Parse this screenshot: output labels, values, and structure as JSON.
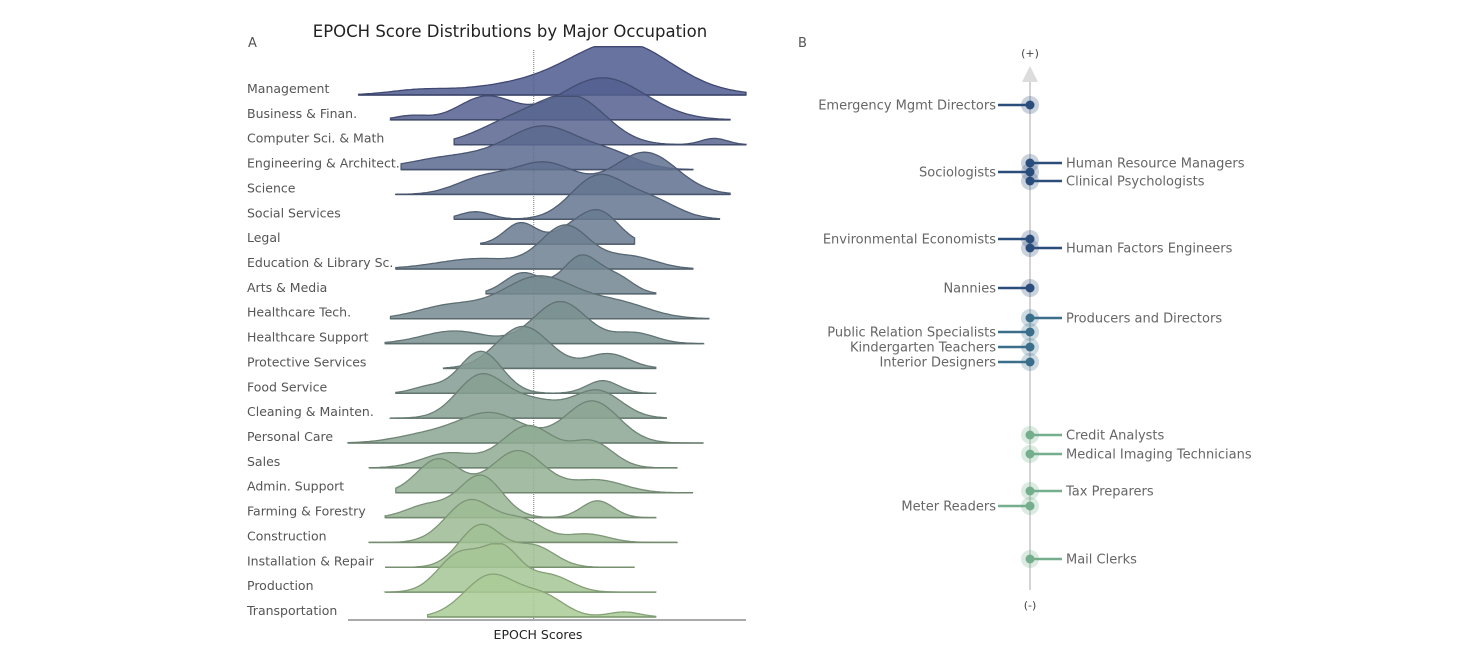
{
  "chart_data": [
    {
      "panel": "A",
      "type": "area",
      "subtype": "ridgeline",
      "title": "EPOCH Score Distributions by Major Occupation",
      "xlabel": "EPOCH Scores",
      "ylabel": "",
      "xlim": [
        -3.5,
        4.0
      ],
      "reference_line_x": 0,
      "grid": false,
      "color_range": [
        "#4f5a8e",
        "#a9cb95"
      ],
      "series": [
        {
          "name": "Management",
          "range": [
            -3.3,
            4.0
          ],
          "peaks": [
            [
              -2.2,
              0.5,
              0.08
            ],
            [
              1.7,
              0.9,
              1.0
            ],
            [
              0.6,
              1.5,
              0.35
            ]
          ]
        },
        {
          "name": "Business & Finan.",
          "range": [
            -2.7,
            3.7
          ],
          "peaks": [
            [
              -2.3,
              0.3,
              0.1
            ],
            [
              -0.9,
              0.5,
              0.55
            ],
            [
              1.3,
              0.8,
              1.0
            ]
          ]
        },
        {
          "name": "Computer Sci. & Math",
          "range": [
            -1.5,
            4.0
          ],
          "peaks": [
            [
              0.8,
              0.6,
              1.0
            ],
            [
              -0.3,
              0.7,
              0.6
            ],
            [
              3.4,
              0.25,
              0.15
            ]
          ]
        },
        {
          "name": "Engineering & Architect.",
          "range": [
            -2.5,
            3.0
          ],
          "peaks": [
            [
              0.2,
              0.7,
              1.0
            ],
            [
              -1.5,
              0.8,
              0.3
            ],
            [
              1.5,
              0.5,
              0.3
            ]
          ]
        },
        {
          "name": "Science",
          "range": [
            -2.6,
            3.7
          ],
          "peaks": [
            [
              0.2,
              0.6,
              0.75
            ],
            [
              2.1,
              0.6,
              1.0
            ],
            [
              -1.0,
              0.5,
              0.35
            ]
          ]
        },
        {
          "name": "Social Services",
          "range": [
            -1.5,
            3.5
          ],
          "peaks": [
            [
              -1.1,
              0.3,
              0.18
            ],
            [
              1.2,
              0.5,
              1.0
            ],
            [
              2.2,
              0.5,
              0.45
            ]
          ]
        },
        {
          "name": "Legal",
          "range": [
            -1.0,
            1.9
          ],
          "peaks": [
            [
              -0.25,
              0.3,
              0.5
            ],
            [
              1.3,
              0.35,
              0.6
            ],
            [
              0.8,
              0.4,
              0.4
            ]
          ]
        },
        {
          "name": "Education & Library Sc.",
          "range": [
            -2.6,
            3.0
          ],
          "peaks": [
            [
              0.6,
              0.45,
              1.0
            ],
            [
              -1.0,
              0.8,
              0.25
            ],
            [
              1.8,
              0.5,
              0.3
            ]
          ]
        },
        {
          "name": "Arts & Media",
          "range": [
            -0.9,
            2.3
          ],
          "peaks": [
            [
              -0.2,
              0.35,
              0.5
            ],
            [
              0.9,
              0.35,
              0.9
            ],
            [
              1.6,
              0.3,
              0.35
            ]
          ]
        },
        {
          "name": "Healthcare Tech.",
          "range": [
            -2.7,
            3.3
          ],
          "peaks": [
            [
              0.1,
              0.7,
              1.0
            ],
            [
              -1.6,
              0.6,
              0.3
            ],
            [
              1.6,
              0.6,
              0.35
            ]
          ]
        },
        {
          "name": "Healthcare Support",
          "range": [
            -2.8,
            3.2
          ],
          "peaks": [
            [
              0.5,
              0.5,
              1.0
            ],
            [
              -1.5,
              0.6,
              0.3
            ],
            [
              1.9,
              0.4,
              0.25
            ]
          ]
        },
        {
          "name": "Protective Services",
          "range": [
            -1.7,
            2.3
          ],
          "peaks": [
            [
              -0.2,
              0.5,
              1.0
            ],
            [
              1.4,
              0.4,
              0.35
            ]
          ]
        },
        {
          "name": "Food Service",
          "range": [
            -2.6,
            2.3
          ],
          "peaks": [
            [
              -1.0,
              0.4,
              1.0
            ],
            [
              1.3,
              0.3,
              0.3
            ],
            [
              -2.0,
              0.3,
              0.15
            ]
          ]
        },
        {
          "name": "Cleaning &  Mainten.",
          "range": [
            -2.7,
            2.5
          ],
          "peaks": [
            [
              -1.0,
              0.45,
              1.0
            ],
            [
              1.2,
              0.45,
              0.65
            ],
            [
              0.0,
              0.5,
              0.4
            ]
          ]
        },
        {
          "name": "Personal Care",
          "range": [
            -3.5,
            3.2
          ],
          "peaks": [
            [
              -0.8,
              0.6,
              0.7
            ],
            [
              1.1,
              0.5,
              1.0
            ],
            [
              -2.0,
              0.6,
              0.2
            ]
          ]
        },
        {
          "name": "Sales",
          "range": [
            -3.1,
            2.7
          ],
          "peaks": [
            [
              -0.1,
              0.5,
              1.0
            ],
            [
              1.1,
              0.4,
              0.6
            ],
            [
              -1.6,
              0.5,
              0.35
            ]
          ]
        },
        {
          "name": "Admin. Support",
          "range": [
            -2.6,
            3.0
          ],
          "peaks": [
            [
              -1.8,
              0.4,
              0.8
            ],
            [
              -0.3,
              0.5,
              1.0
            ],
            [
              1.2,
              0.5,
              0.3
            ]
          ]
        },
        {
          "name": "Farming & Forestry",
          "range": [
            -2.8,
            2.3
          ],
          "peaks": [
            [
              -1.0,
              0.4,
              1.0
            ],
            [
              1.2,
              0.3,
              0.4
            ],
            [
              -2.0,
              0.4,
              0.3
            ]
          ]
        },
        {
          "name": "Construction",
          "range": [
            -3.1,
            2.7
          ],
          "peaks": [
            [
              -1.2,
              0.45,
              1.0
            ],
            [
              -0.2,
              0.4,
              0.5
            ],
            [
              1.0,
              0.4,
              0.2
            ]
          ]
        },
        {
          "name": "Installation & Repair",
          "range": [
            -2.8,
            1.9
          ],
          "peaks": [
            [
              -1.0,
              0.4,
              1.0
            ],
            [
              0.0,
              0.4,
              0.5
            ]
          ]
        },
        {
          "name": "Production",
          "range": [
            -2.8,
            2.3
          ],
          "peaks": [
            [
              -1.4,
              0.4,
              0.9
            ],
            [
              -0.6,
              0.35,
              1.0
            ],
            [
              0.3,
              0.4,
              0.4
            ]
          ]
        },
        {
          "name": "Transportation",
          "range": [
            -2.0,
            2.3
          ],
          "peaks": [
            [
              -0.8,
              0.5,
              1.0
            ],
            [
              0.2,
              0.4,
              0.45
            ],
            [
              1.7,
              0.3,
              0.12
            ]
          ]
        }
      ]
    },
    {
      "panel": "B",
      "type": "scatter",
      "subtype": "ranked-axis",
      "axis_top_label": "(+)",
      "axis_bottom_label": "(-)",
      "ylim": [
        0,
        100
      ],
      "colors": {
        "high": "#2b4d7b",
        "mid": "#3b6e8a",
        "low": "#74ae8c"
      },
      "points": [
        {
          "name": "Emergency Mgmt Directors",
          "score": 99,
          "side": "left"
        },
        {
          "name": "Human Resource Managers",
          "score": 87.4,
          "side": "right"
        },
        {
          "name": "Sociologists",
          "score": 85.6,
          "side": "left"
        },
        {
          "name": "Clinical Psychologists",
          "score": 83.8,
          "side": "right"
        },
        {
          "name": "Environmental Economists",
          "score": 72.2,
          "side": "left"
        },
        {
          "name": "Human Factors Engineers",
          "score": 70.4,
          "side": "right"
        },
        {
          "name": "Nannies",
          "score": 62.4,
          "side": "left"
        },
        {
          "name": "Producers and Directors",
          "score": 56.4,
          "side": "right"
        },
        {
          "name": "Public Relation Specialists",
          "score": 53.6,
          "side": "left"
        },
        {
          "name": "Kindergarten Teachers",
          "score": 50.6,
          "side": "left"
        },
        {
          "name": "Interior Designers",
          "score": 47.6,
          "side": "left"
        },
        {
          "name": "Credit Analysts",
          "score": 33,
          "side": "right"
        },
        {
          "name": "Medical Imaging Technicians",
          "score": 29.2,
          "side": "right"
        },
        {
          "name": "Tax Preparers",
          "score": 21.8,
          "side": "right"
        },
        {
          "name": "Meter Readers",
          "score": 18.8,
          "side": "left"
        },
        {
          "name": "Mail Clerks",
          "score": 8.2,
          "side": "right"
        }
      ]
    }
  ]
}
